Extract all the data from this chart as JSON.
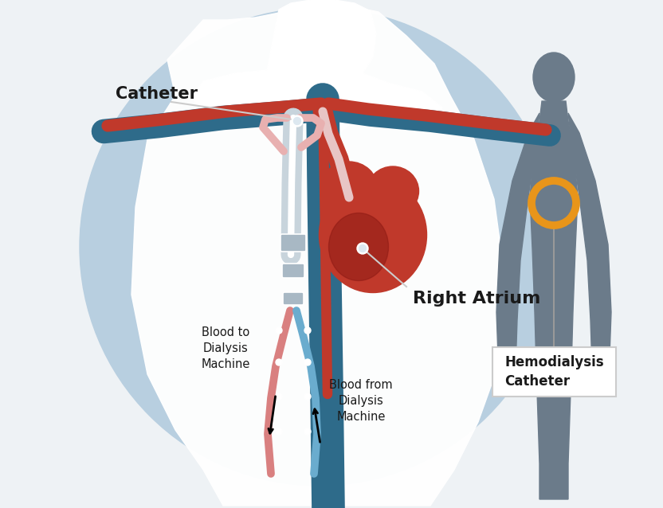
{
  "bg_color": "#eef2f5",
  "circle_color": "#b8cfe0",
  "silhouette_color": "#6b7b8a",
  "heart_color": "#c0392b",
  "heart_dark": "#8e1a14",
  "artery_color": "#2e6b8a",
  "vein_color": "#c0392b",
  "catheter_red": "#d98080",
  "catheter_blue": "#6aacce",
  "catheter_body": "#c8d4dc",
  "connector_color": "#a8b8c4",
  "orange_ring": "#e8951a",
  "label_catheter": "Catheter",
  "label_right_atrium": "Right Atrium",
  "label_blood_to": "Blood to\nDialysis\nMachine",
  "label_blood_from": "Blood from\nDialysis\nMachine",
  "label_hemodialysis": "Hemodialysis\nCatheter",
  "text_color": "#1a1a1a"
}
